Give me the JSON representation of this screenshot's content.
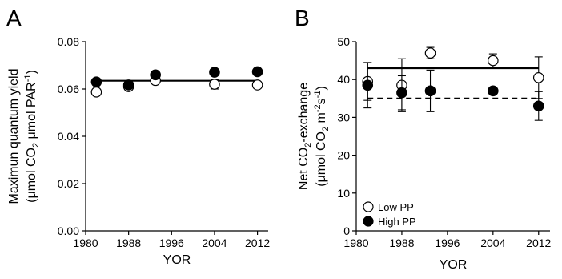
{
  "panels": [
    {
      "letter": "A"
    },
    {
      "letter": "B"
    }
  ],
  "chart_data": [
    {
      "type": "scatter",
      "xlabel": "YOR",
      "ylabel_main": "Maximun quantum yield",
      "ylabel_unit": {
        "open": "(",
        "mu1": "μ",
        "mol": "mol CO",
        "co2_sub": "2",
        "space": " ",
        "mu2": "μ",
        "par": "mol PAR",
        "sup": "-1",
        "close": ")"
      },
      "xlim": [
        1980,
        2014
      ],
      "ylim": [
        0,
        0.08
      ],
      "xticks": [
        1980,
        1988,
        1996,
        2004,
        2012
      ],
      "yticks": [
        0.0,
        0.02,
        0.04,
        0.06,
        0.08
      ],
      "ytick_labels": [
        "0.00",
        "0.02",
        "0.04",
        "0.06",
        "0.08"
      ],
      "series": [
        {
          "marker": "open",
          "x": [
            1982,
            1988,
            1993,
            2004,
            2012
          ],
          "y": [
            0.0587,
            0.061,
            0.0636,
            0.062,
            0.0617
          ],
          "yerr": [
            0,
            0,
            0,
            0.002,
            0
          ]
        },
        {
          "marker": "filled",
          "x": [
            1982,
            1988,
            1993,
            2004,
            2012
          ],
          "y": [
            0.063,
            0.0617,
            0.066,
            0.0671,
            0.0673
          ],
          "yerr": [
            0,
            0,
            0,
            0,
            0
          ]
        }
      ],
      "fit_lines": [
        {
          "style": "solid",
          "x": [
            1982,
            2012
          ],
          "y": [
            0.0635,
            0.0635
          ]
        }
      ]
    },
    {
      "type": "scatter",
      "xlabel": "YOR",
      "ylabel_main": "Net CO",
      "ylabel_main_sub": "2",
      "ylabel_main_rest": "-exchange",
      "ylabel_unit": {
        "open": "(",
        "mu": "μ",
        "mol": "mol CO",
        "co2_sub": "2",
        "m": " m",
        "m_sup": "-2",
        "s": "s",
        "s_sup": "-1",
        "close": ")"
      },
      "xlim": [
        1980,
        2014
      ],
      "ylim": [
        0,
        50
      ],
      "xticks": [
        1980,
        1988,
        1996,
        2004,
        2012
      ],
      "yticks": [
        0,
        10,
        20,
        30,
        40,
        50
      ],
      "ytick_labels": [
        "0",
        "10",
        "20",
        "30",
        "40",
        "50"
      ],
      "legend_position": "bottom-left",
      "series": [
        {
          "name": "Low PP",
          "marker": "open",
          "x": [
            1982,
            1988,
            1993,
            2004,
            2012
          ],
          "y": [
            39.5,
            38.5,
            47.0,
            45.0,
            40.5
          ],
          "yerr": [
            5.0,
            7.0,
            1.5,
            1.8,
            5.5
          ]
        },
        {
          "name": "High PP",
          "marker": "filled",
          "x": [
            1982,
            1988,
            1993,
            2004,
            2012
          ],
          "y": [
            38.5,
            36.5,
            37.0,
            37.0,
            33.0
          ],
          "yerr": [
            6.0,
            4.5,
            5.5,
            0,
            3.8
          ]
        }
      ],
      "fit_lines": [
        {
          "style": "solid",
          "x": [
            1982,
            2012
          ],
          "y": [
            43.0,
            43.0
          ]
        },
        {
          "style": "dashed",
          "x": [
            1982,
            2012
          ],
          "y": [
            35.0,
            35.0
          ]
        }
      ]
    }
  ]
}
